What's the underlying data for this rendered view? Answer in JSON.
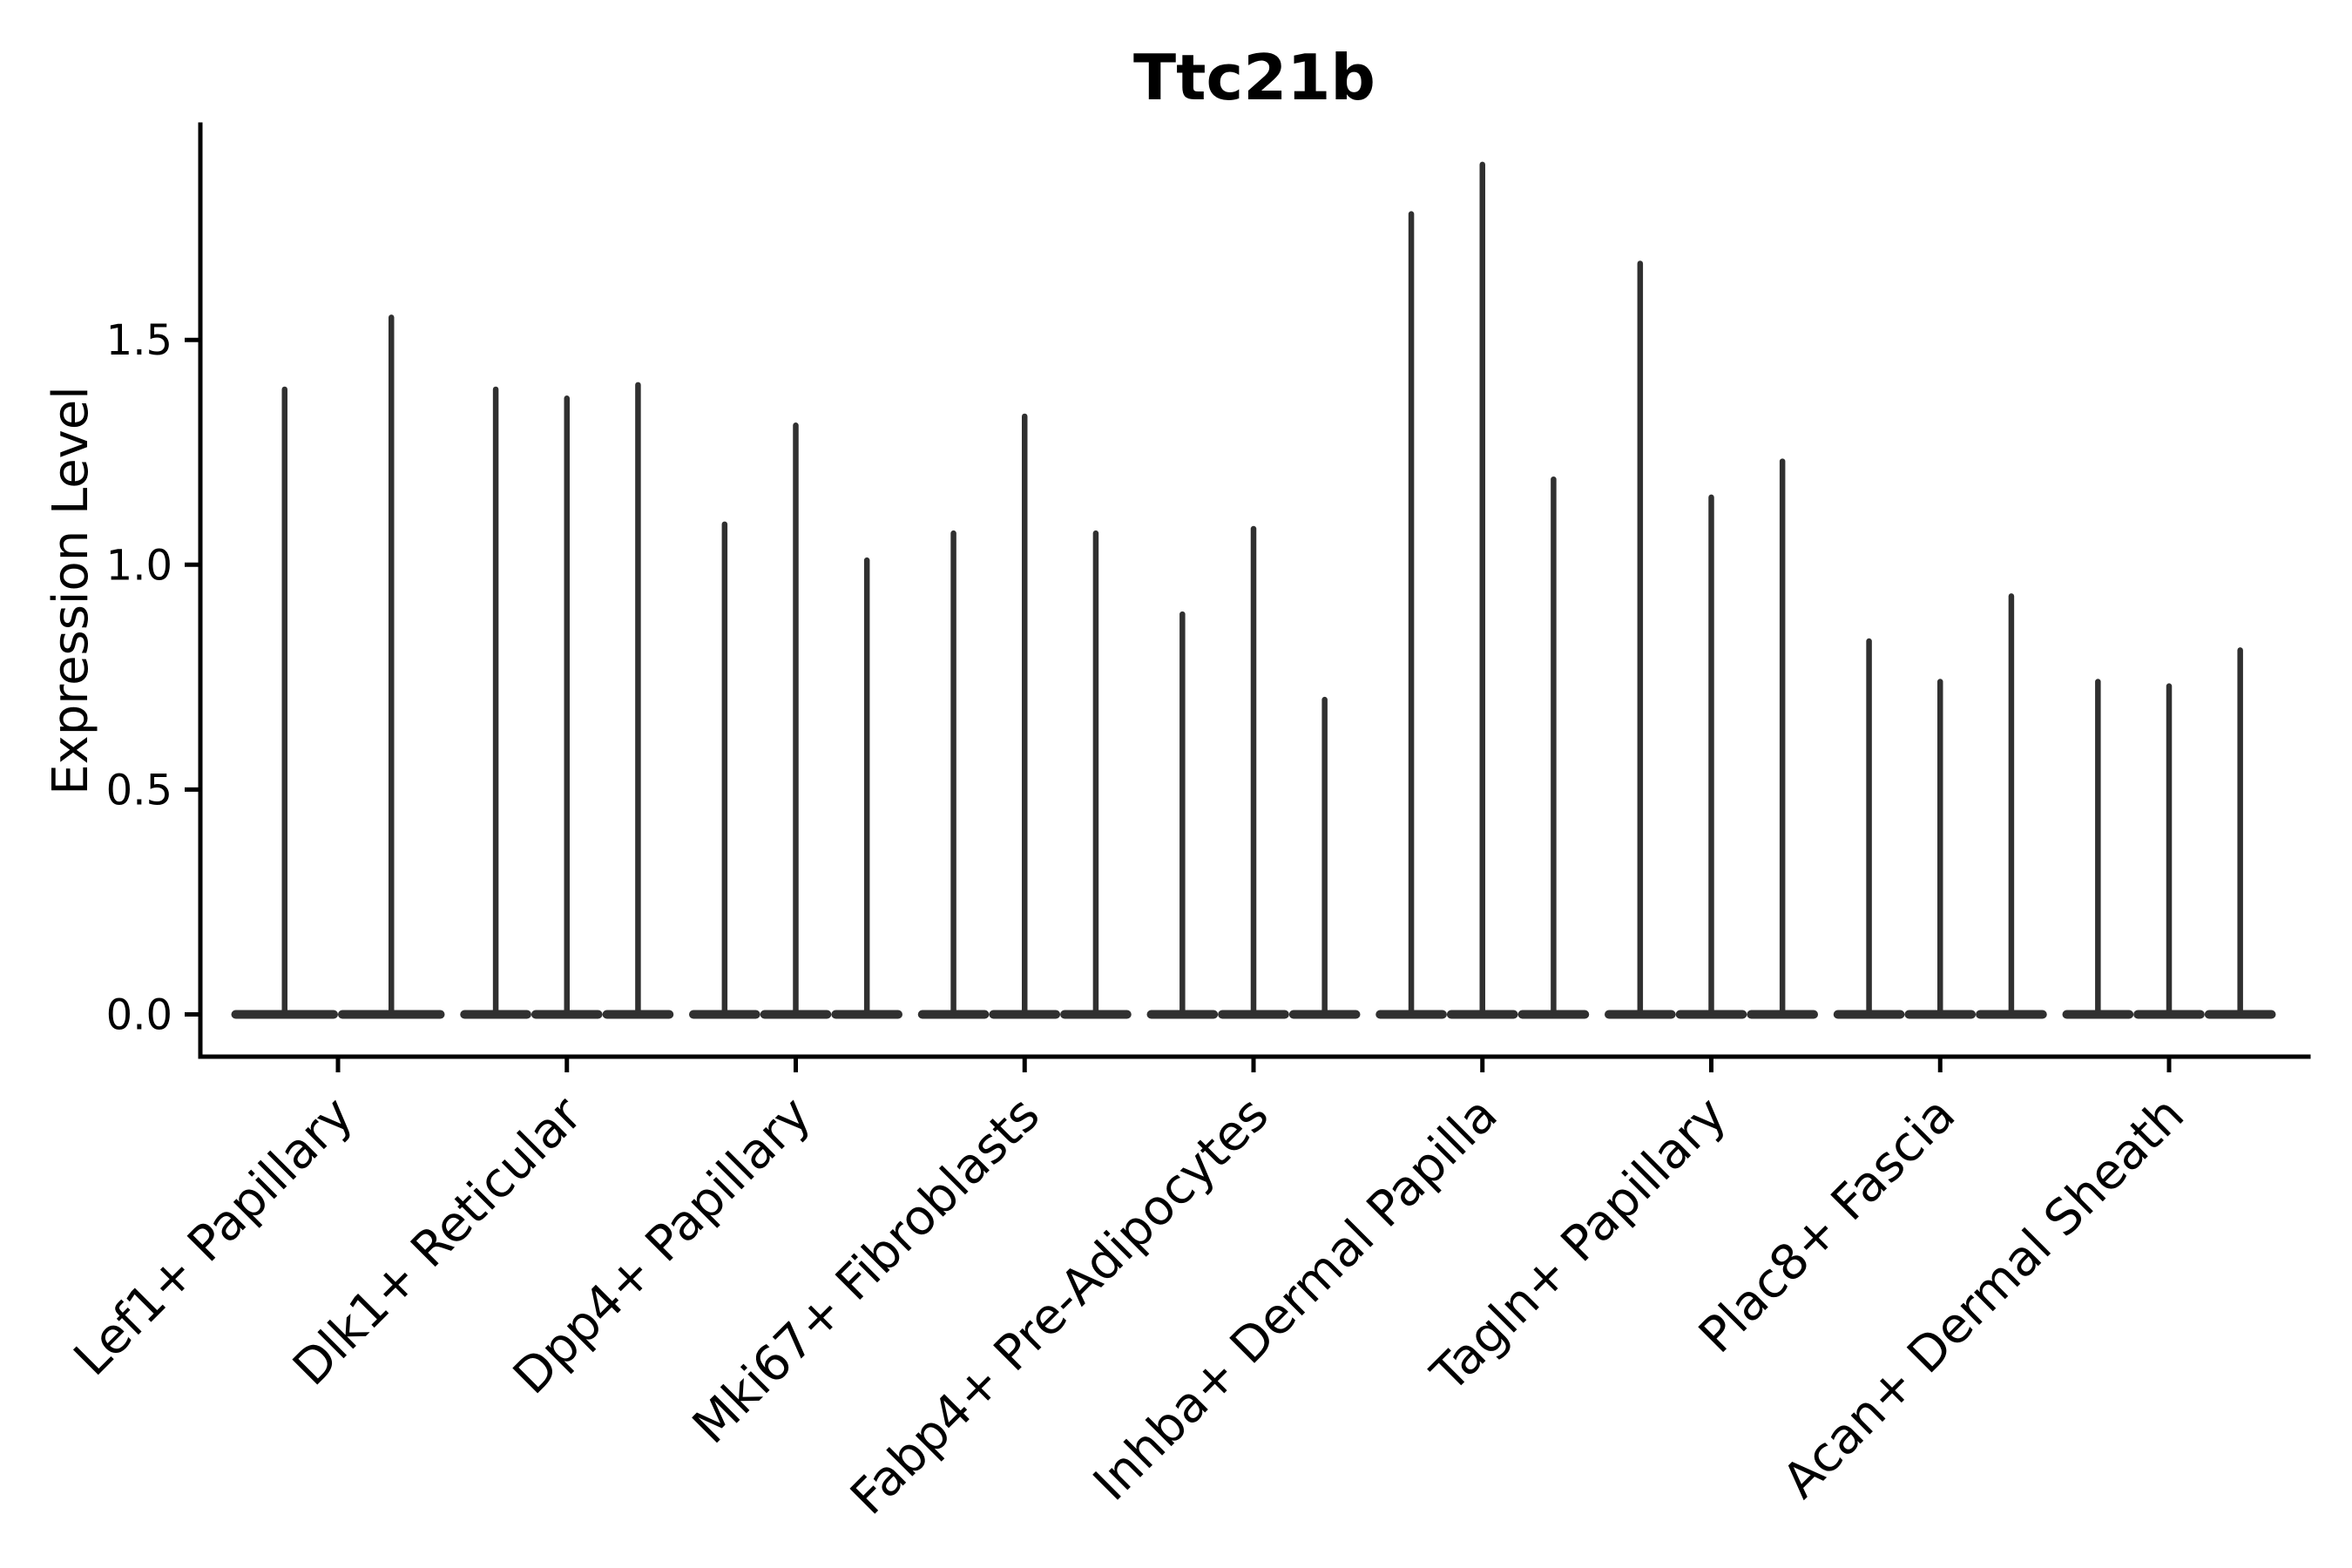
{
  "chart_data": {
    "type": "violin",
    "title": "Ttc21b",
    "ylabel": "Expression Level",
    "xlabel": "",
    "categories": [
      "Lef1+ Papillary",
      "Dlk1+ Reticular",
      "Dpp4+ Papillary",
      "Mki67+ Fibroblasts",
      "Fabp4+ Pre-Adipocytes",
      "Inhba+ Dermal Papilla",
      "Tagln+ Papillary",
      "Plac8+ Fascia",
      "Acan+ Dermal Sheath"
    ],
    "violin_maxima_per_category": [
      [
        1.39,
        1.55
      ],
      [
        1.39,
        1.37,
        1.4
      ],
      [
        1.09,
        1.31,
        1.01
      ],
      [
        1.07,
        1.33,
        1.07
      ],
      [
        0.89,
        1.08,
        0.7
      ],
      [
        1.78,
        1.89,
        1.19
      ],
      [
        1.67,
        1.15,
        1.23
      ],
      [
        0.83,
        0.74,
        0.93
      ],
      [
        0.74,
        0.73,
        0.81
      ]
    ],
    "baseline_value": 0.0,
    "ytick_labels": [
      "0.0",
      "0.5",
      "1.0",
      "1.5"
    ],
    "ytick_values": [
      0.0,
      0.5,
      1.0,
      1.5
    ],
    "ylim": [
      -0.095,
      1.98
    ],
    "x_label_rotation_deg": 45,
    "grid": false,
    "legend_position": "none",
    "violin_color": "#303030",
    "axis_color": "#000000",
    "violin_shape_note": "each violin is a flat lens at expression 0 with a thin rounded spike rising to its maximum value"
  }
}
